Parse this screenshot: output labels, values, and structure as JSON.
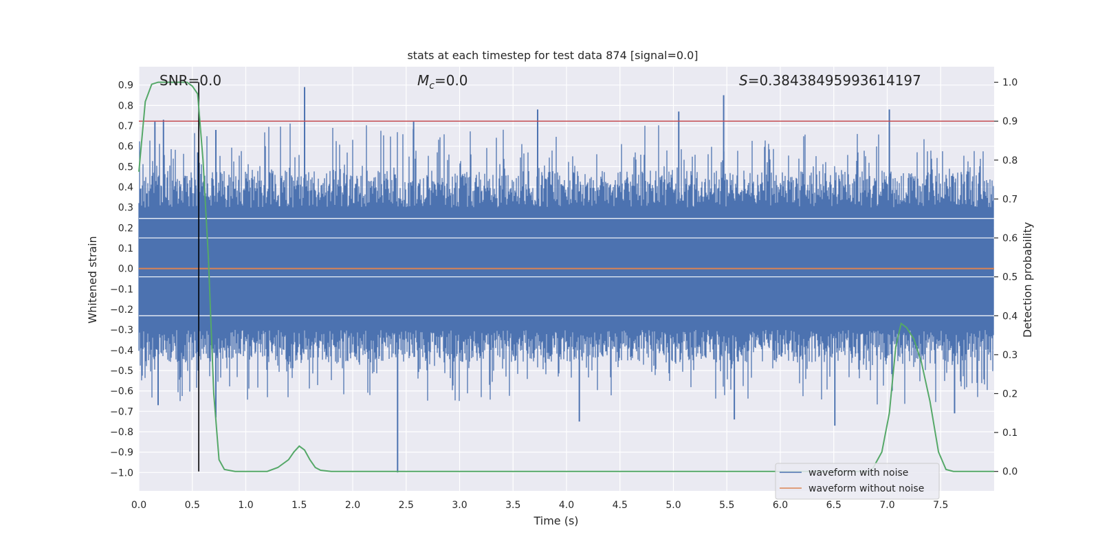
{
  "chart_data": {
    "type": "line",
    "title": "stats at each timestep for test data 874 [signal=0.0]",
    "xlabel": "Time (s)",
    "ylabel": "Whitened strain",
    "y2label": "Detection probability",
    "xlim": [
      0.0,
      8.0
    ],
    "ylim": [
      -1.09,
      0.99
    ],
    "y2lim": [
      -0.05,
      1.04
    ],
    "xticks": [
      "0.0",
      "0.5",
      "1.0",
      "1.5",
      "2.0",
      "2.5",
      "3.0",
      "3.5",
      "4.0",
      "4.5",
      "5.0",
      "5.5",
      "6.0",
      "6.5",
      "7.0",
      "7.5"
    ],
    "xtick_values": [
      0.0,
      0.5,
      1.0,
      1.5,
      2.0,
      2.5,
      3.0,
      3.5,
      4.0,
      4.5,
      5.0,
      5.5,
      6.0,
      6.5,
      7.0,
      7.5
    ],
    "yticks": [
      "0.9",
      "0.8",
      "0.7",
      "0.6",
      "0.5",
      "0.4",
      "0.3",
      "0.2",
      "0.1",
      "0.0",
      "−0.1",
      "−0.2",
      "−0.3",
      "−0.4",
      "−0.5",
      "−0.6",
      "−0.7",
      "−0.8",
      "−0.9",
      "−1.0"
    ],
    "ytick_values": [
      0.9,
      0.8,
      0.7,
      0.6,
      0.5,
      0.4,
      0.3,
      0.2,
      0.1,
      0.0,
      -0.1,
      -0.2,
      -0.3,
      -0.4,
      -0.5,
      -0.6,
      -0.7,
      -0.8,
      -0.9,
      -1.0
    ],
    "y2ticks": [
      "1.0",
      "0.9",
      "0.8",
      "0.7",
      "0.6",
      "0.5",
      "0.4",
      "0.3",
      "0.2",
      "0.1",
      "0.0"
    ],
    "y2tick_values": [
      1.0,
      0.9,
      0.8,
      0.7,
      0.6,
      0.5,
      0.4,
      0.3,
      0.2,
      0.1,
      0.0
    ],
    "annotations": {
      "snr": "SNR=0.0",
      "mc_symbol": "M",
      "mc_sub": "c",
      "mc_value": "=0.0",
      "s_symbol": "S",
      "s_value": "=0.38438495993614197"
    },
    "threshold": {
      "value": 0.9,
      "axis": "right",
      "color": "#c44e52"
    },
    "marker_time": 0.56,
    "grid": true,
    "legend_position": "lower right",
    "series": [
      {
        "name": "waveform with noise",
        "color": "#4c72b0",
        "axis": "left",
        "note_spikes": [
          {
            "x": 0.15,
            "y": 0.72
          },
          {
            "x": 0.23,
            "y": 0.73
          },
          {
            "x": 0.55,
            "y": 0.57
          },
          {
            "x": 0.72,
            "y": 0.68
          },
          {
            "x": 1.55,
            "y": 0.89
          },
          {
            "x": 2.57,
            "y": 0.72
          },
          {
            "x": 3.73,
            "y": 0.78
          },
          {
            "x": 5.05,
            "y": 0.77
          },
          {
            "x": 5.47,
            "y": 0.85
          },
          {
            "x": 7.02,
            "y": 0.78
          },
          {
            "x": 0.18,
            "y": -0.67
          },
          {
            "x": 0.72,
            "y": -0.73
          },
          {
            "x": 2.42,
            "y": -1.0
          },
          {
            "x": 4.12,
            "y": -0.75
          },
          {
            "x": 5.57,
            "y": -0.74
          },
          {
            "x": 6.51,
            "y": -0.77
          },
          {
            "x": 7.63,
            "y": -0.71
          }
        ]
      },
      {
        "name": "waveform without noise",
        "color": "#dd8452",
        "axis": "left",
        "values_constant": 0.0
      },
      {
        "name": "detection probability",
        "color": "#55a868",
        "axis": "right",
        "x": [
          0.0,
          0.06,
          0.12,
          0.18,
          0.25,
          0.35,
          0.45,
          0.5,
          0.55,
          0.6,
          0.65,
          0.7,
          0.75,
          0.8,
          0.9,
          1.0,
          1.1,
          1.2,
          1.3,
          1.4,
          1.45,
          1.5,
          1.55,
          1.6,
          1.65,
          1.7,
          1.8,
          2.0,
          3.0,
          4.0,
          5.0,
          6.0,
          6.6,
          6.85,
          6.95,
          7.02,
          7.08,
          7.13,
          7.18,
          7.25,
          7.32,
          7.4,
          7.48,
          7.55,
          7.62,
          7.7,
          7.85,
          8.0
        ],
        "y": [
          0.77,
          0.95,
          0.995,
          1.0,
          1.0,
          1.0,
          1.0,
          0.99,
          0.97,
          0.8,
          0.55,
          0.2,
          0.03,
          0.005,
          0.0,
          0.0,
          0.0,
          0.0,
          0.01,
          0.03,
          0.05,
          0.065,
          0.055,
          0.03,
          0.01,
          0.003,
          0.0,
          0.0,
          0.0,
          0.0,
          0.0,
          0.0,
          0.0,
          0.0,
          0.05,
          0.15,
          0.32,
          0.38,
          0.37,
          0.34,
          0.28,
          0.18,
          0.05,
          0.005,
          0.0,
          0.0,
          0.0,
          0.0
        ]
      }
    ]
  }
}
